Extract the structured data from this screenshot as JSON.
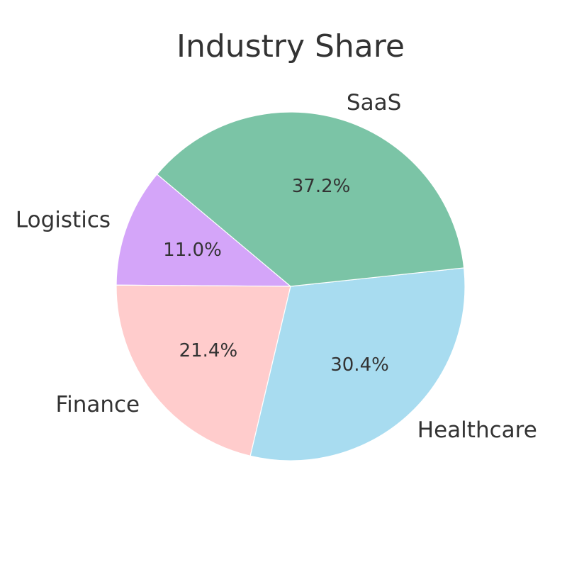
{
  "chart_data": {
    "type": "pie",
    "title": "Industry Share",
    "categories": [
      "Logistics",
      "Finance",
      "Healthcare",
      "SaaS"
    ],
    "values": [
      11.0,
      21.4,
      30.4,
      37.2
    ],
    "value_labels": [
      "11.0%",
      "21.4%",
      "30.4%",
      "37.2%"
    ],
    "colors": [
      "#d4a5f9",
      "#ffcccc",
      "#a8dcf0",
      "#7bc4a6"
    ],
    "start_angle_deg": 140,
    "direction": "counterclockwise",
    "legend": "none"
  }
}
